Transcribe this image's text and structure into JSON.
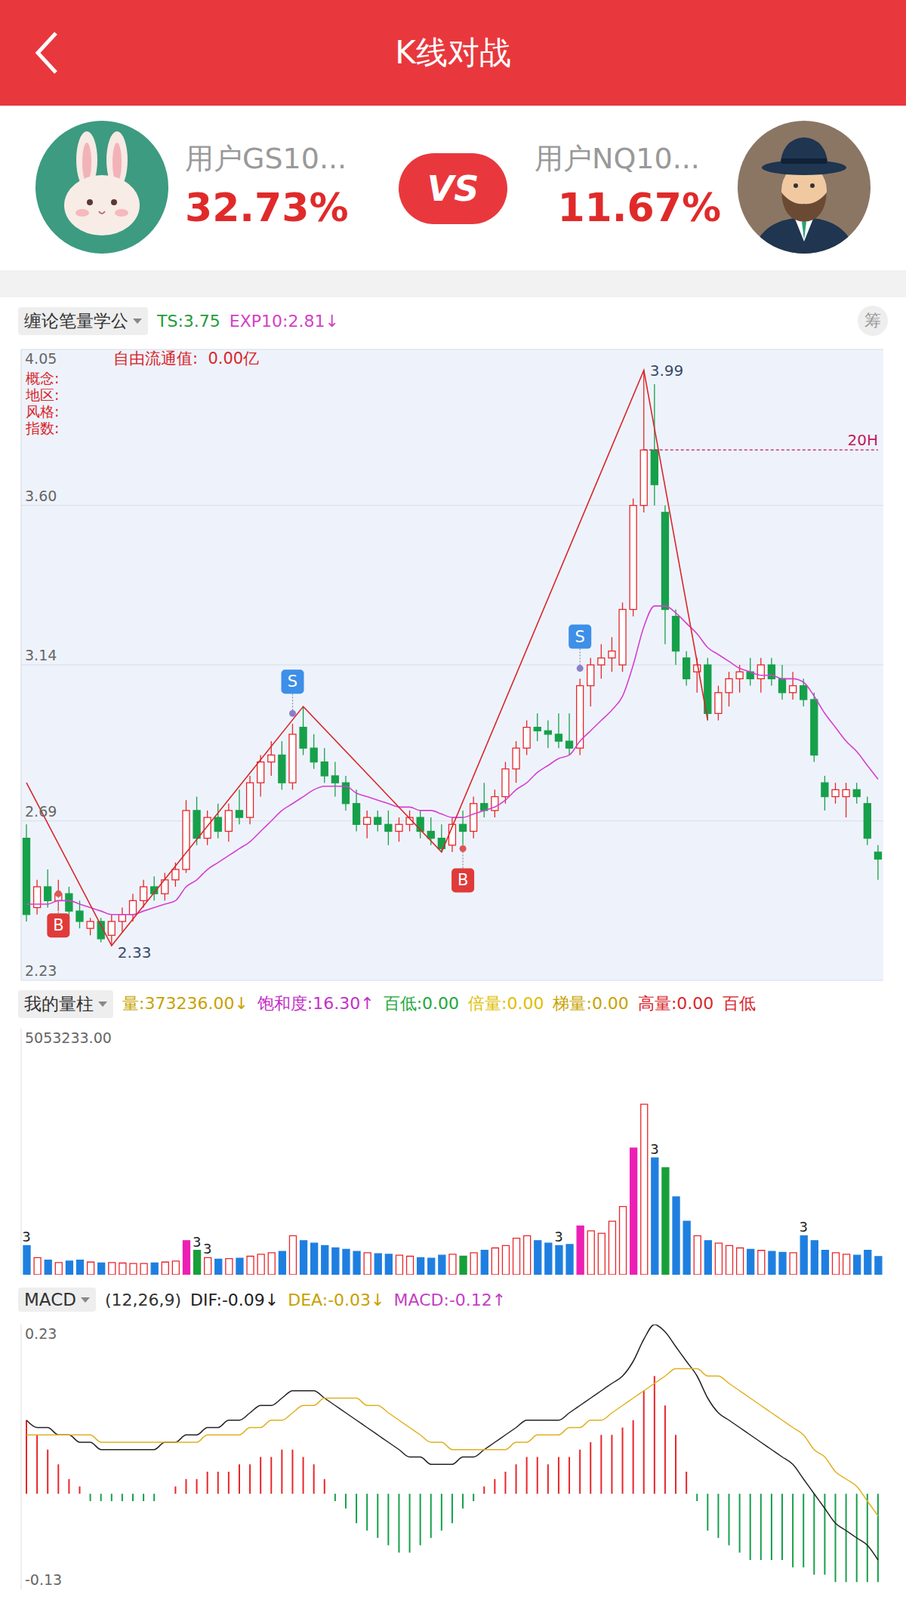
{
  "header": {
    "title": "K线对战"
  },
  "players": [
    {
      "name": "用户GS10...",
      "score": "32.73%"
    },
    {
      "name": "用户NQ10...",
      "score": "11.67%"
    }
  ],
  "vs": "VS",
  "chart_data": [
    {
      "type": "candlestick",
      "indicator": "缠论笔量学公",
      "readouts": [
        {
          "text": "TS:3.75",
          "color": "#1f9b3a"
        },
        {
          "text": "EXP10:2.81↓",
          "color": "#d43fc8"
        }
      ],
      "button": "筹",
      "info": [
        "概念:",
        "地区:",
        "风格:",
        "指数:"
      ],
      "info_note": "自由流通值:  0.00亿",
      "open": [
        2.64,
        2.44,
        2.5,
        2.46,
        2.48,
        2.43,
        2.38,
        2.4,
        2.36,
        2.4,
        2.42,
        2.46,
        2.5,
        2.48,
        2.52,
        2.55,
        2.72,
        2.64,
        2.7,
        2.66,
        2.72,
        2.7,
        2.8,
        2.86,
        2.88,
        2.8,
        2.96,
        2.9,
        2.86,
        2.82,
        2.8,
        2.74,
        2.68,
        2.7,
        2.68,
        2.66,
        2.68,
        2.7,
        2.66,
        2.64,
        2.62,
        2.68,
        2.66,
        2.74,
        2.72,
        2.76,
        2.84,
        2.9,
        2.96,
        2.95,
        2.94,
        2.92,
        2.9,
        3.08,
        3.14,
        3.16,
        3.14,
        3.3,
        3.6,
        3.76,
        3.58,
        3.28,
        3.16,
        3.12,
        3.14,
        3.0,
        3.06,
        3.1,
        3.12,
        3.1,
        3.14,
        3.1,
        3.06,
        3.08,
        3.04,
        2.8,
        2.76,
        2.76,
        2.78,
        2.74,
        2.6
      ],
      "high": [
        2.68,
        2.52,
        2.55,
        2.52,
        2.5,
        2.46,
        2.41,
        2.41,
        2.42,
        2.44,
        2.48,
        2.52,
        2.53,
        2.54,
        2.57,
        2.75,
        2.76,
        2.72,
        2.74,
        2.74,
        2.78,
        2.82,
        2.88,
        2.92,
        2.92,
        2.97,
        3.02,
        2.94,
        2.9,
        2.86,
        2.82,
        2.78,
        2.72,
        2.72,
        2.72,
        2.7,
        2.72,
        2.72,
        2.7,
        2.68,
        2.7,
        2.72,
        2.76,
        2.8,
        2.78,
        2.86,
        2.92,
        2.98,
        3.0,
        2.98,
        3.0,
        3.0,
        3.1,
        3.16,
        3.2,
        3.22,
        3.32,
        3.62,
        3.99,
        3.95,
        3.6,
        3.3,
        3.18,
        3.16,
        3.16,
        3.08,
        3.12,
        3.14,
        3.16,
        3.16,
        3.16,
        3.14,
        3.12,
        3.1,
        3.06,
        2.82,
        2.8,
        2.8,
        2.8,
        2.76,
        2.62
      ],
      "low": [
        2.4,
        2.42,
        2.44,
        2.43,
        2.41,
        2.38,
        2.36,
        2.34,
        2.33,
        2.37,
        2.4,
        2.44,
        2.46,
        2.46,
        2.5,
        2.54,
        2.62,
        2.62,
        2.64,
        2.63,
        2.68,
        2.68,
        2.76,
        2.82,
        2.78,
        2.78,
        2.88,
        2.84,
        2.8,
        2.76,
        2.72,
        2.66,
        2.64,
        2.66,
        2.62,
        2.63,
        2.66,
        2.64,
        2.62,
        2.6,
        2.6,
        2.62,
        2.64,
        2.7,
        2.7,
        2.74,
        2.8,
        2.88,
        2.92,
        2.9,
        2.9,
        2.88,
        2.88,
        3.02,
        3.1,
        3.12,
        3.12,
        3.28,
        3.58,
        3.6,
        3.2,
        3.14,
        3.08,
        3.06,
        2.98,
        2.98,
        3.02,
        3.06,
        3.08,
        3.06,
        3.08,
        3.04,
        3.04,
        3.02,
        2.86,
        2.72,
        2.74,
        2.7,
        2.74,
        2.62,
        2.52
      ],
      "close": [
        2.42,
        2.5,
        2.46,
        2.48,
        2.43,
        2.4,
        2.4,
        2.35,
        2.4,
        2.42,
        2.46,
        2.5,
        2.48,
        2.52,
        2.55,
        2.72,
        2.64,
        2.7,
        2.66,
        2.72,
        2.7,
        2.8,
        2.86,
        2.88,
        2.8,
        2.94,
        2.9,
        2.86,
        2.82,
        2.8,
        2.74,
        2.68,
        2.7,
        2.68,
        2.66,
        2.68,
        2.7,
        2.66,
        2.64,
        2.61,
        2.68,
        2.66,
        2.74,
        2.72,
        2.76,
        2.84,
        2.9,
        2.96,
        2.95,
        2.94,
        2.92,
        2.9,
        3.08,
        3.14,
        3.16,
        3.18,
        3.3,
        3.6,
        3.76,
        3.66,
        3.3,
        3.18,
        3.1,
        3.14,
        3.0,
        3.06,
        3.1,
        3.12,
        3.1,
        3.14,
        3.1,
        3.06,
        3.08,
        3.04,
        2.88,
        2.76,
        2.78,
        2.78,
        2.76,
        2.64,
        2.58
      ],
      "moving_average": {
        "color": "#d63fd0",
        "values": [
          2.45,
          2.45,
          2.45,
          2.46,
          2.46,
          2.45,
          2.44,
          2.43,
          2.42,
          2.42,
          2.42,
          2.43,
          2.44,
          2.45,
          2.46,
          2.5,
          2.52,
          2.55,
          2.57,
          2.59,
          2.61,
          2.63,
          2.66,
          2.69,
          2.72,
          2.74,
          2.76,
          2.78,
          2.79,
          2.79,
          2.79,
          2.77,
          2.76,
          2.75,
          2.74,
          2.73,
          2.73,
          2.72,
          2.72,
          2.71,
          2.7,
          2.7,
          2.71,
          2.72,
          2.73,
          2.75,
          2.78,
          2.8,
          2.83,
          2.85,
          2.87,
          2.88,
          2.92,
          2.95,
          2.98,
          3.01,
          3.05,
          3.14,
          3.25,
          3.31,
          3.31,
          3.29,
          3.26,
          3.23,
          3.19,
          3.17,
          3.15,
          3.13,
          3.12,
          3.11,
          3.11,
          3.1,
          3.1,
          3.09,
          3.05,
          3.0,
          2.96,
          2.92,
          2.89,
          2.85,
          2.81
        ]
      },
      "strokes": {
        "color": "#d9262b",
        "index": [
          0,
          8,
          26,
          39,
          58,
          64
        ],
        "values": [
          2.8,
          2.33,
          3.02,
          2.6,
          3.99,
          2.98
        ]
      },
      "signals": [
        {
          "label": "B",
          "index": 3,
          "value": 2.48
        },
        {
          "label": "S",
          "index": 25,
          "value": 3.0
        },
        {
          "label": "B",
          "index": 41,
          "value": 2.61
        },
        {
          "label": "S",
          "index": 52,
          "value": 3.13
        }
      ],
      "annotations": [
        {
          "text": "2.33",
          "index": 8,
          "value": 2.33
        },
        {
          "text": "3.99",
          "index": 58,
          "value": 3.99
        },
        {
          "text": "20H",
          "index": 58,
          "value": 3.76,
          "line_style": "dashed"
        }
      ],
      "ylim": [
        2.23,
        4.05
      ],
      "yticks": [
        4.05,
        {
          "value": 3.6,
          "label": "3.60"
        },
        3.14,
        2.69,
        2.23
      ],
      "grid": true,
      "tick_labels": "y"
    },
    {
      "type": "bar",
      "indicator": "我的量柱",
      "readouts": [
        {
          "text": "量:373236.00↓",
          "color": "#c8a200"
        },
        {
          "text": "饱和度:16.30↑",
          "color": "#c52fc8"
        },
        {
          "text": "百低:0.00",
          "color": "#22a83a"
        },
        {
          "text": "倍量:0.00",
          "color": "#e0be00"
        },
        {
          "text": "梯量:0.00",
          "color": "#c8a200"
        },
        {
          "text": "高量:0.00",
          "color": "#d9262b"
        },
        {
          "text": "百低",
          "color": "#d9262b"
        }
      ],
      "values": [
        600000,
        350000,
        300000,
        250000,
        280000,
        300000,
        260000,
        240000,
        250000,
        240000,
        230000,
        230000,
        240000,
        260000,
        280000,
        700000,
        500000,
        350000,
        320000,
        330000,
        340000,
        380000,
        420000,
        450000,
        480000,
        800000,
        700000,
        650000,
        600000,
        550000,
        520000,
        480000,
        450000,
        430000,
        420000,
        400000,
        380000,
        350000,
        340000,
        400000,
        420000,
        380000,
        450000,
        500000,
        550000,
        600000,
        750000,
        800000,
        700000,
        650000,
        600000,
        620000,
        1000000,
        900000,
        850000,
        1100000,
        1400000,
        2600000,
        3500000,
        2400000,
        2200000,
        1600000,
        1100000,
        800000,
        700000,
        650000,
        600000,
        550000,
        520000,
        500000,
        480000,
        460000,
        450000,
        800000,
        700000,
        500000,
        450000,
        420000,
        400000,
        500000,
        373236
      ],
      "colors": [
        "#1f7fe0",
        "#e8262a",
        "#1f7fe0",
        "#e8262a",
        "#1f7fe0",
        "#1f7fe0",
        "#e8262a",
        "#1f7fe0",
        "#e8262a",
        "#e8262a",
        "#e8262a",
        "#e8262a",
        "#1f7fe0",
        "#e8262a",
        "#e8262a",
        "#ec20b4",
        "#17a03a",
        "#e8262a",
        "#1f7fe0",
        "#e8262a",
        "#1f7fe0",
        "#e8262a",
        "#e8262a",
        "#e8262a",
        "#1f7fe0",
        "#e8262a",
        "#1f7fe0",
        "#1f7fe0",
        "#1f7fe0",
        "#1f7fe0",
        "#1f7fe0",
        "#1f7fe0",
        "#e8262a",
        "#1f7fe0",
        "#1f7fe0",
        "#e8262a",
        "#e8262a",
        "#1f7fe0",
        "#1f7fe0",
        "#1f7fe0",
        "#e8262a",
        "#17a03a",
        "#e8262a",
        "#1f7fe0",
        "#e8262a",
        "#e8262a",
        "#e8262a",
        "#e8262a",
        "#1f7fe0",
        "#1f7fe0",
        "#1f7fe0",
        "#1f7fe0",
        "#ec20b4",
        "#e8262a",
        "#e8262a",
        "#e8262a",
        "#e8262a",
        "#ec20b4",
        "#e8262a",
        "#1f7fe0",
        "#17a03a",
        "#1f7fe0",
        "#1f7fe0",
        "#e8262a",
        "#1f7fe0",
        "#e8262a",
        "#e8262a",
        "#e8262a",
        "#1f7fe0",
        "#e8262a",
        "#1f7fe0",
        "#1f7fe0",
        "#e8262a",
        "#1f7fe0",
        "#1f7fe0",
        "#1f7fe0",
        "#e8262a",
        "#e8262a",
        "#1f7fe0",
        "#1f7fe0",
        "#1f7fe0"
      ],
      "annotations": [
        {
          "text": "3",
          "index": 0
        },
        {
          "text": "3",
          "index": 16
        },
        {
          "text": "3",
          "index": 17
        },
        {
          "text": "3",
          "index": 50
        },
        {
          "text": "3",
          "index": 59
        },
        {
          "text": "3",
          "index": 73
        }
      ],
      "ylim": [
        0,
        5053233
      ],
      "yticks": [
        {
          "value": 5053233,
          "label": "5053233.00"
        }
      ],
      "tick_labels": "y"
    },
    {
      "type": "macd",
      "indicator": "MACD",
      "readouts": [
        {
          "text": "(12,26,9)",
          "color": "#333333"
        },
        {
          "text": "DIF:-0.09↓",
          "color": "#222222"
        },
        {
          "text": "DEA:-0.03↓",
          "color": "#c9a000"
        },
        {
          "text": "MACD:-0.12↑",
          "color": "#c43fc4"
        }
      ],
      "dif": {
        "color": "#222222",
        "values": [
          0.1,
          0.09,
          0.09,
          0.08,
          0.08,
          0.07,
          0.07,
          0.06,
          0.06,
          0.06,
          0.06,
          0.06,
          0.06,
          0.07,
          0.07,
          0.08,
          0.08,
          0.09,
          0.09,
          0.1,
          0.1,
          0.11,
          0.12,
          0.12,
          0.13,
          0.14,
          0.14,
          0.14,
          0.13,
          0.12,
          0.11,
          0.1,
          0.09,
          0.08,
          0.07,
          0.06,
          0.05,
          0.05,
          0.04,
          0.04,
          0.04,
          0.05,
          0.05,
          0.06,
          0.07,
          0.08,
          0.09,
          0.1,
          0.1,
          0.1,
          0.1,
          0.11,
          0.12,
          0.13,
          0.14,
          0.15,
          0.16,
          0.18,
          0.21,
          0.23,
          0.22,
          0.2,
          0.18,
          0.16,
          0.13,
          0.11,
          0.1,
          0.09,
          0.08,
          0.07,
          0.06,
          0.05,
          0.04,
          0.02,
          0.0,
          -0.02,
          -0.04,
          -0.05,
          -0.06,
          -0.07,
          -0.09
        ]
      },
      "dea": {
        "color": "#e0b020",
        "values": [
          0.08,
          0.08,
          0.08,
          0.08,
          0.08,
          0.08,
          0.08,
          0.07,
          0.07,
          0.07,
          0.07,
          0.07,
          0.07,
          0.07,
          0.07,
          0.07,
          0.07,
          0.08,
          0.08,
          0.08,
          0.08,
          0.09,
          0.09,
          0.1,
          0.1,
          0.11,
          0.12,
          0.12,
          0.13,
          0.13,
          0.13,
          0.13,
          0.12,
          0.12,
          0.11,
          0.1,
          0.09,
          0.08,
          0.07,
          0.07,
          0.06,
          0.06,
          0.06,
          0.06,
          0.06,
          0.06,
          0.07,
          0.07,
          0.08,
          0.08,
          0.08,
          0.09,
          0.09,
          0.1,
          0.1,
          0.11,
          0.12,
          0.13,
          0.14,
          0.15,
          0.16,
          0.17,
          0.17,
          0.17,
          0.16,
          0.16,
          0.15,
          0.14,
          0.13,
          0.12,
          0.11,
          0.1,
          0.09,
          0.08,
          0.06,
          0.05,
          0.03,
          0.02,
          0.01,
          -0.01,
          -0.03
        ]
      },
      "hist": {
        "values": [
          0.1,
          0.08,
          0.06,
          0.04,
          0.02,
          0.01,
          -0.01,
          -0.01,
          -0.01,
          -0.01,
          -0.01,
          -0.01,
          -0.01,
          0.0,
          0.01,
          0.02,
          0.02,
          0.03,
          0.03,
          0.03,
          0.04,
          0.04,
          0.05,
          0.05,
          0.06,
          0.06,
          0.05,
          0.04,
          0.02,
          -0.01,
          -0.02,
          -0.04,
          -0.05,
          -0.06,
          -0.07,
          -0.08,
          -0.08,
          -0.07,
          -0.06,
          -0.05,
          -0.04,
          -0.02,
          -0.01,
          0.01,
          0.02,
          0.03,
          0.04,
          0.05,
          0.05,
          0.04,
          0.05,
          0.05,
          0.06,
          0.07,
          0.08,
          0.08,
          0.09,
          0.1,
          0.14,
          0.16,
          0.12,
          0.08,
          0.03,
          -0.01,
          -0.05,
          -0.06,
          -0.07,
          -0.08,
          -0.09,
          -0.09,
          -0.09,
          -0.09,
          -0.1,
          -0.1,
          -0.11,
          -0.11,
          -0.12,
          -0.12,
          -0.12,
          -0.12,
          -0.12
        ]
      },
      "ylim": [
        -0.13,
        0.23
      ],
      "yticks": [
        0.23,
        -0.13
      ],
      "tick_labels": "y"
    }
  ]
}
